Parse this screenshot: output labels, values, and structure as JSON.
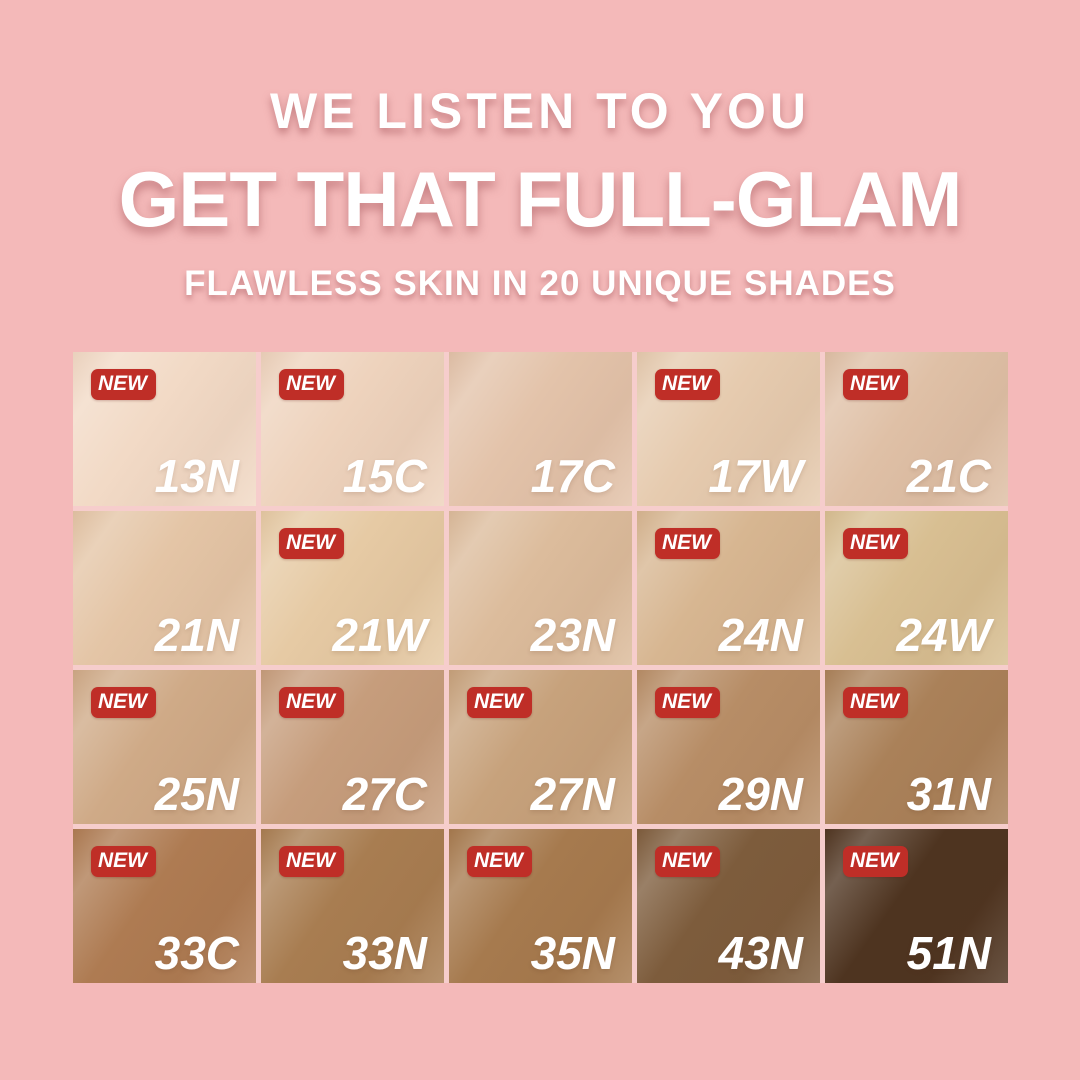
{
  "page": {
    "background_color": "#f4b9b9",
    "accent_red": "#bf2e27"
  },
  "header": {
    "line1": "WE LISTEN TO YOU",
    "line2": "GET THAT FULL-GLAM",
    "line3": "FLAWLESS SKIN IN 20 UNIQUE SHADES"
  },
  "grid": {
    "badge_label": "NEW",
    "shade_count": 20,
    "cells": [
      {
        "label": "13N",
        "color": "#f2dac6",
        "new": true
      },
      {
        "label": "15C",
        "color": "#eed3bd",
        "new": true
      },
      {
        "label": "17C",
        "color": "#e3c3aa",
        "new": false
      },
      {
        "label": "17W",
        "color": "#e6cbaf",
        "new": true
      },
      {
        "label": "21C",
        "color": "#dfc0a6",
        "new": true
      },
      {
        "label": "21N",
        "color": "#e4c5a6",
        "new": false
      },
      {
        "label": "21W",
        "color": "#e6caa4",
        "new": true
      },
      {
        "label": "23N",
        "color": "#dcbc9c",
        "new": false
      },
      {
        "label": "24N",
        "color": "#d7b691",
        "new": true
      },
      {
        "label": "24W",
        "color": "#d8bf92",
        "new": true
      },
      {
        "label": "25N",
        "color": "#cfaa87",
        "new": true
      },
      {
        "label": "27C",
        "color": "#c69d7c",
        "new": true
      },
      {
        "label": "27N",
        "color": "#c7a27c",
        "new": true
      },
      {
        "label": "29N",
        "color": "#b78d66",
        "new": true
      },
      {
        "label": "31N",
        "color": "#aa8159",
        "new": true
      },
      {
        "label": "33C",
        "color": "#ae7b52",
        "new": true
      },
      {
        "label": "33N",
        "color": "#a87d51",
        "new": true
      },
      {
        "label": "35N",
        "color": "#a67a4e",
        "new": true
      },
      {
        "label": "43N",
        "color": "#7d5c3c",
        "new": true
      },
      {
        "label": "51N",
        "color": "#4e3420",
        "new": true
      }
    ]
  }
}
